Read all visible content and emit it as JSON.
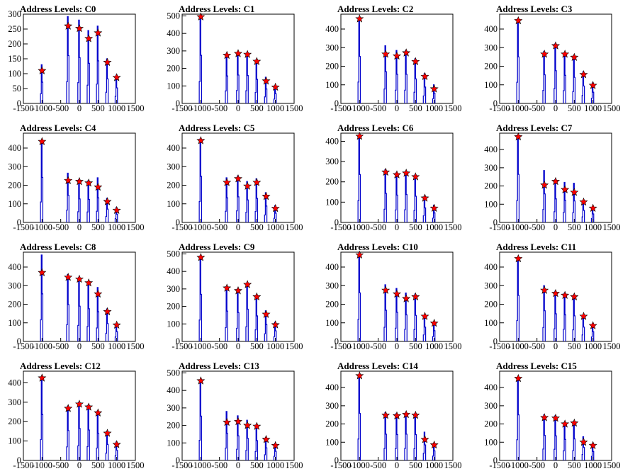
{
  "chart_data": [
    {
      "type": "scatter",
      "title": "Address Levels: C0",
      "xlim": [
        -1500,
        1500
      ],
      "ylim": [
        0,
        300
      ],
      "yticks": [
        0,
        50,
        100,
        150,
        200,
        250,
        300
      ],
      "x": [
        -1000,
        -300,
        0,
        250,
        500,
        750,
        1000
      ],
      "y": [
        110,
        260,
        252,
        218,
        237,
        138,
        87
      ],
      "spike_peaks": [
        130,
        292,
        280,
        245,
        260,
        150,
        95
      ]
    },
    {
      "type": "scatter",
      "title": "Address Levels: C1",
      "xlim": [
        -1500,
        1500
      ],
      "ylim": [
        0,
        510
      ],
      "yticks": [
        0,
        100,
        200,
        300,
        400,
        500
      ],
      "x": [
        -1000,
        -300,
        0,
        250,
        500,
        750,
        1000
      ],
      "y": [
        495,
        275,
        285,
        280,
        240,
        128,
        93
      ],
      "spike_peaks": [
        500,
        285,
        295,
        290,
        250,
        150,
        100
      ]
    },
    {
      "type": "scatter",
      "title": "Address Levels: C2",
      "xlim": [
        -1500,
        1500
      ],
      "ylim": [
        0,
        480
      ],
      "yticks": [
        0,
        100,
        200,
        300,
        400
      ],
      "x": [
        -1000,
        -300,
        0,
        250,
        500,
        750,
        1000
      ],
      "y": [
        455,
        265,
        255,
        272,
        225,
        145,
        78
      ],
      "spike_peaks": [
        460,
        310,
        285,
        285,
        240,
        160,
        100
      ]
    },
    {
      "type": "scatter",
      "title": "Address Levels: C3",
      "xlim": [
        -1500,
        1500
      ],
      "ylim": [
        0,
        480
      ],
      "yticks": [
        0,
        100,
        200,
        300,
        400
      ],
      "x": [
        -1000,
        -300,
        0,
        250,
        500,
        750,
        1000
      ],
      "y": [
        445,
        265,
        310,
        265,
        248,
        155,
        97
      ],
      "spike_peaks": [
        455,
        280,
        320,
        275,
        255,
        170,
        110
      ]
    },
    {
      "type": "scatter",
      "title": "Address Levels: C4",
      "xlim": [
        -1500,
        1500
      ],
      "ylim": [
        0,
        480
      ],
      "yticks": [
        0,
        100,
        200,
        300,
        400
      ],
      "x": [
        -1000,
        -300,
        0,
        250,
        500,
        750,
        1000
      ],
      "y": [
        435,
        225,
        220,
        212,
        190,
        112,
        65
      ],
      "spike_peaks": [
        440,
        265,
        230,
        225,
        240,
        130,
        80
      ]
    },
    {
      "type": "scatter",
      "title": "Address Levels: C5",
      "xlim": [
        -1500,
        1500
      ],
      "ylim": [
        0,
        480
      ],
      "yticks": [
        0,
        100,
        200,
        300,
        400
      ],
      "x": [
        -1000,
        -300,
        0,
        250,
        500,
        750,
        1000
      ],
      "y": [
        440,
        215,
        235,
        195,
        215,
        140,
        75
      ],
      "spike_peaks": [
        450,
        240,
        250,
        220,
        235,
        160,
        90
      ]
    },
    {
      "type": "scatter",
      "title": "Address Levels: C6",
      "xlim": [
        -1500,
        1500
      ],
      "ylim": [
        0,
        440
      ],
      "yticks": [
        0,
        100,
        200,
        300,
        400
      ],
      "x": [
        -1000,
        -300,
        0,
        250,
        500,
        750,
        1000
      ],
      "y": [
        425,
        248,
        235,
        243,
        225,
        120,
        70
      ],
      "spike_peaks": [
        430,
        260,
        245,
        250,
        235,
        130,
        85
      ]
    },
    {
      "type": "scatter",
      "title": "Address Levels: C7",
      "xlim": [
        -1500,
        1500
      ],
      "ylim": [
        0,
        490
      ],
      "yticks": [
        0,
        100,
        200,
        300,
        400
      ],
      "x": [
        -1000,
        -300,
        0,
        250,
        500,
        750,
        1000
      ],
      "y": [
        470,
        205,
        225,
        180,
        165,
        112,
        78
      ],
      "spike_peaks": [
        480,
        285,
        235,
        220,
        215,
        120,
        85
      ]
    },
    {
      "type": "scatter",
      "title": "Address Levels: C8",
      "xlim": [
        -1500,
        1500
      ],
      "ylim": [
        0,
        480
      ],
      "yticks": [
        0,
        100,
        200,
        300,
        400
      ],
      "x": [
        -1000,
        -300,
        0,
        250,
        500,
        750,
        1000
      ],
      "y": [
        370,
        345,
        335,
        315,
        255,
        160,
        88
      ],
      "spike_peaks": [
        465,
        360,
        345,
        320,
        290,
        175,
        95
      ]
    },
    {
      "type": "scatter",
      "title": "Address Levels: C9",
      "xlim": [
        -1500,
        1500
      ],
      "ylim": [
        0,
        510
      ],
      "yticks": [
        0,
        100,
        200,
        300,
        400,
        500
      ],
      "x": [
        -1000,
        -300,
        0,
        250,
        500,
        750,
        1000
      ],
      "y": [
        480,
        305,
        290,
        325,
        255,
        155,
        95
      ],
      "spike_peaks": [
        490,
        315,
        300,
        335,
        265,
        175,
        110
      ]
    },
    {
      "type": "scatter",
      "title": "Address Levels: C10",
      "xlim": [
        -1500,
        1500
      ],
      "ylim": [
        0,
        480
      ],
      "yticks": [
        0,
        100,
        200,
        300,
        400
      ],
      "x": [
        -1000,
        -300,
        0,
        250,
        500,
        750,
        1000
      ],
      "y": [
        465,
        275,
        255,
        230,
        240,
        135,
        98
      ],
      "spike_peaks": [
        475,
        305,
        285,
        260,
        255,
        140,
        105
      ]
    },
    {
      "type": "scatter",
      "title": "Address Levels: C11",
      "xlim": [
        -1500,
        1500
      ],
      "ylim": [
        0,
        480
      ],
      "yticks": [
        0,
        100,
        200,
        300,
        400
      ],
      "x": [
        -1000,
        -300,
        0,
        250,
        500,
        750,
        1000
      ],
      "y": [
        445,
        275,
        258,
        248,
        240,
        135,
        85
      ],
      "spike_peaks": [
        450,
        300,
        270,
        260,
        250,
        140,
        95
      ]
    },
    {
      "type": "scatter",
      "title": "Address Levels: C12",
      "xlim": [
        -1500,
        1500
      ],
      "ylim": [
        0,
        460
      ],
      "yticks": [
        0,
        100,
        200,
        300,
        400
      ],
      "x": [
        -1000,
        -300,
        0,
        250,
        500,
        750,
        1000
      ],
      "y": [
        425,
        268,
        290,
        275,
        245,
        140,
        82
      ],
      "spike_peaks": [
        430,
        280,
        300,
        285,
        255,
        150,
        95
      ]
    },
    {
      "type": "scatter",
      "title": "Address Levels: C13",
      "xlim": [
        -1500,
        1500
      ],
      "ylim": [
        0,
        510
      ],
      "yticks": [
        0,
        100,
        200,
        300,
        400,
        500
      ],
      "x": [
        -1000,
        -300,
        0,
        250,
        500,
        750,
        1000
      ],
      "y": [
        455,
        218,
        222,
        200,
        195,
        120,
        85
      ],
      "spike_peaks": [
        460,
        280,
        255,
        230,
        205,
        130,
        95
      ]
    },
    {
      "type": "scatter",
      "title": "Address Levels: C14",
      "xlim": [
        -1500,
        1500
      ],
      "ylim": [
        0,
        490
      ],
      "yticks": [
        0,
        100,
        200,
        300,
        400
      ],
      "x": [
        -1000,
        -300,
        0,
        250,
        500,
        750,
        1000
      ],
      "y": [
        465,
        248,
        245,
        252,
        248,
        115,
        85
      ],
      "spike_peaks": [
        470,
        262,
        258,
        262,
        258,
        155,
        95
      ]
    },
    {
      "type": "scatter",
      "title": "Address Levels: C15",
      "xlim": [
        -1500,
        1500
      ],
      "ylim": [
        0,
        490
      ],
      "yticks": [
        0,
        100,
        200,
        300,
        400
      ],
      "x": [
        -1000,
        -300,
        0,
        250,
        500,
        750,
        1000
      ],
      "y": [
        450,
        235,
        232,
        200,
        205,
        100,
        82
      ],
      "spike_peaks": [
        455,
        250,
        245,
        210,
        215,
        130,
        90
      ]
    }
  ],
  "xticks": [
    -1500,
    -1000,
    -500,
    0,
    500,
    1000,
    1500
  ],
  "xtick_labels": [
    "-1500",
    "-1000",
    "-500",
    "0",
    "500",
    "1000",
    "1500"
  ],
  "colors": {
    "histogram": "#0000cc",
    "marker": "#ff0000",
    "frame": "#000000"
  }
}
